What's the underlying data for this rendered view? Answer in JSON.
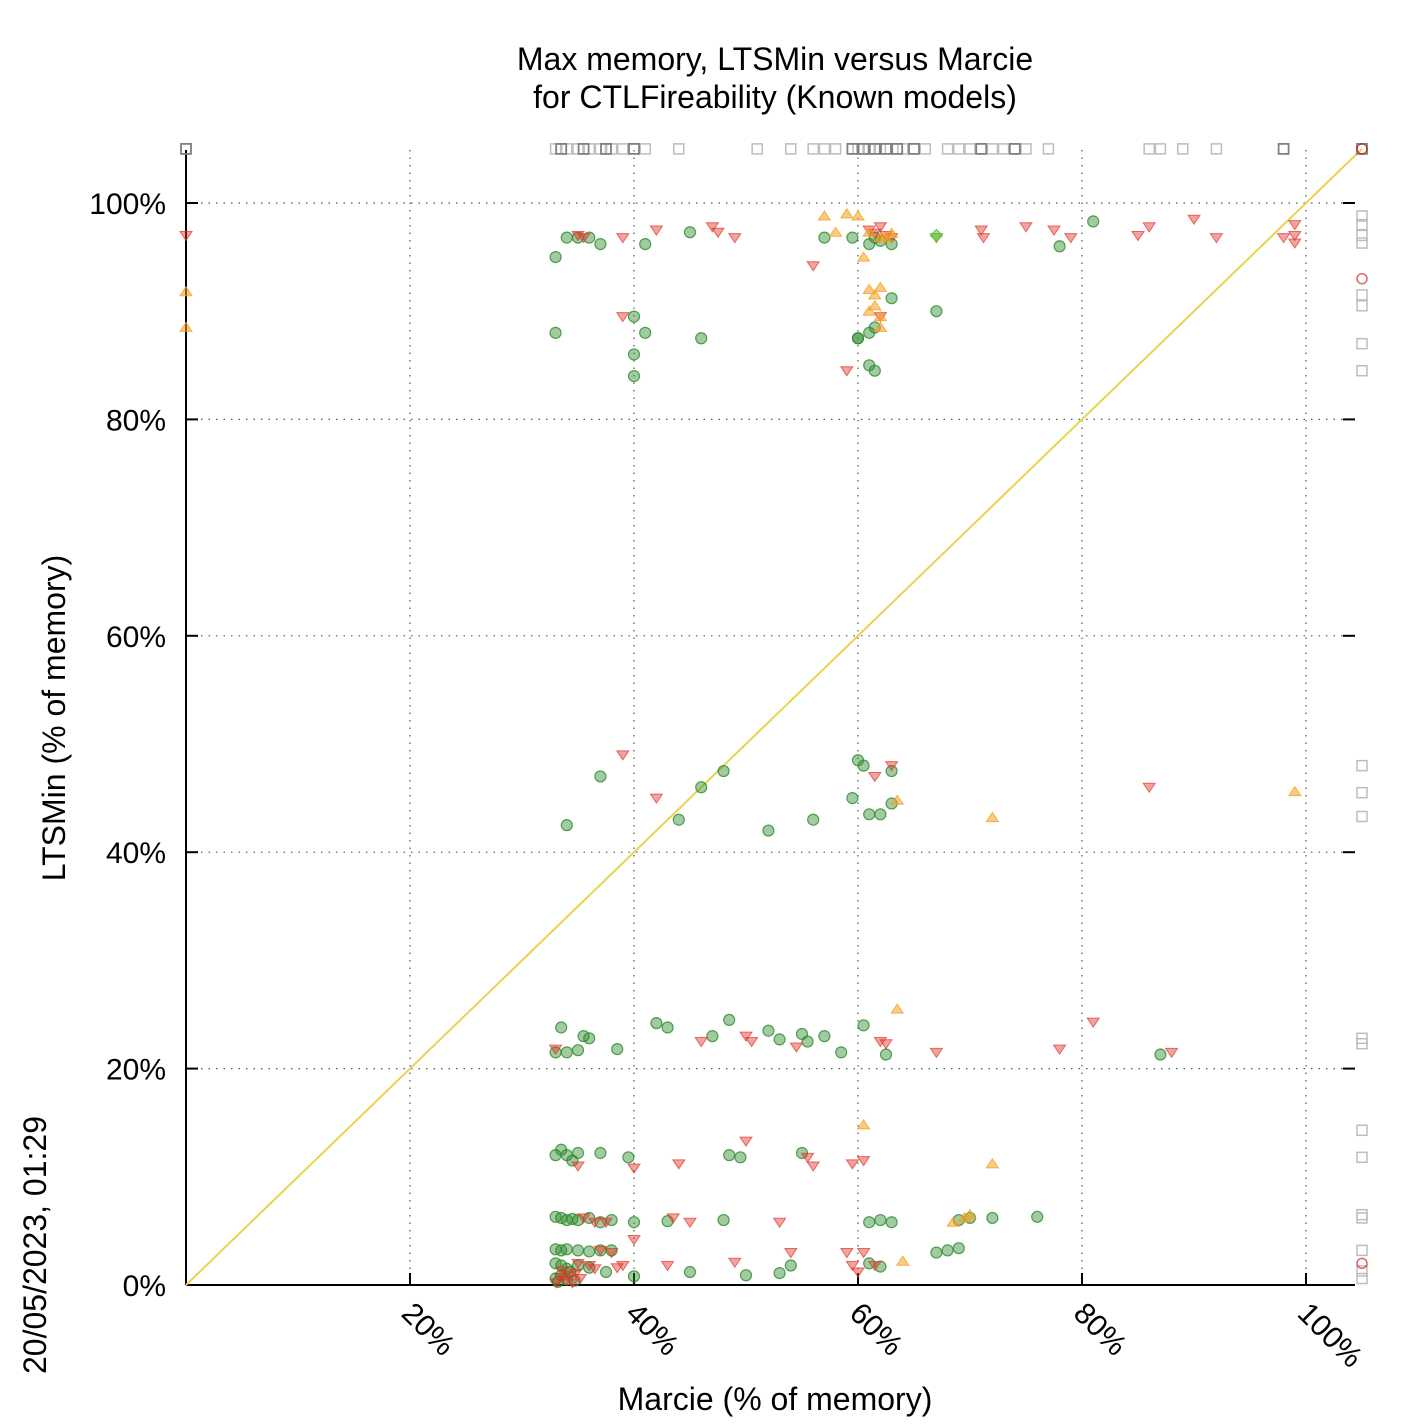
{
  "chart_data": {
    "type": "scatter",
    "title_line1": "Max memory, LTSMin versus Marcie",
    "title_line2": "for CTLFireability (Known models)",
    "xlabel": "Marcie (% of memory)",
    "ylabel": "LTSMin (% of memory)",
    "timestamp": "20/05/2023, 01:29",
    "xlim": [
      0,
      100
    ],
    "ylim": [
      0,
      100
    ],
    "x_tick_labels": [
      "20%",
      "40%",
      "60%",
      "80%",
      "100%"
    ],
    "x_ticks": [
      20,
      40,
      60,
      80,
      100
    ],
    "y_tick_labels": [
      "0%",
      "20%",
      "40%",
      "60%",
      "80%",
      "100%"
    ],
    "y_ticks": [
      0,
      20,
      40,
      60,
      80,
      100
    ],
    "grid": true,
    "diagonal": {
      "color": "#e8d44d",
      "from": [
        0,
        0
      ],
      "to": [
        100,
        100
      ]
    },
    "colors": {
      "circle": "#2e8b2e",
      "down_triangle": "#e0362a",
      "up_triangle": "#f5a020",
      "diamond": "#33dd33",
      "square_light": "#bdbdbd",
      "square_dark": "#808080",
      "fail_red": "#cc0000"
    },
    "series": [
      {
        "marker": "circle",
        "points": [
          [
            33,
            95
          ],
          [
            34,
            96.8
          ],
          [
            35,
            96.8
          ],
          [
            36,
            96.8
          ],
          [
            37,
            96.2
          ],
          [
            41,
            96.2
          ],
          [
            45,
            97.3
          ],
          [
            57,
            96.8
          ],
          [
            59.5,
            96.8
          ],
          [
            61,
            96.2
          ],
          [
            61.5,
            96.8
          ],
          [
            62,
            96.5
          ],
          [
            63,
            96.2
          ],
          [
            81,
            98.3
          ],
          [
            78,
            96
          ],
          [
            33,
            88
          ],
          [
            40,
            89.5
          ],
          [
            41,
            88
          ],
          [
            40,
            86
          ],
          [
            40,
            84
          ],
          [
            46,
            87.5
          ],
          [
            60,
            87.5
          ],
          [
            61,
            88
          ],
          [
            61.5,
            88.5
          ],
          [
            63,
            91.2
          ],
          [
            67,
            90
          ],
          [
            61,
            85
          ],
          [
            61.5,
            84.5
          ],
          [
            60,
            87.5
          ],
          [
            37,
            47
          ],
          [
            46,
            46
          ],
          [
            48,
            47.5
          ],
          [
            44,
            43
          ],
          [
            52,
            42
          ],
          [
            34,
            42.5
          ],
          [
            56,
            43
          ],
          [
            59.5,
            45
          ],
          [
            60,
            48.5
          ],
          [
            60.5,
            48
          ],
          [
            61,
            43.5
          ],
          [
            62,
            43.5
          ],
          [
            63,
            47.5
          ],
          [
            63,
            44.5
          ],
          [
            33.5,
            23.8
          ],
          [
            33,
            21.5
          ],
          [
            34,
            21.5
          ],
          [
            35,
            21.7
          ],
          [
            35.5,
            23
          ],
          [
            36,
            22.8
          ],
          [
            38.5,
            21.8
          ],
          [
            42,
            24.2
          ],
          [
            43,
            23.8
          ],
          [
            47,
            23
          ],
          [
            48.5,
            24.5
          ],
          [
            52,
            23.5
          ],
          [
            53,
            22.7
          ],
          [
            55,
            23.2
          ],
          [
            55.5,
            22.5
          ],
          [
            57,
            23
          ],
          [
            58.5,
            21.5
          ],
          [
            60.5,
            24
          ],
          [
            62.5,
            21.3
          ],
          [
            87,
            21.3
          ],
          [
            33.5,
            12.5
          ],
          [
            34,
            12
          ],
          [
            34.5,
            11.5
          ],
          [
            33,
            12
          ],
          [
            35,
            12.2
          ],
          [
            37,
            12.2
          ],
          [
            39.5,
            11.8
          ],
          [
            48.5,
            12
          ],
          [
            49.5,
            11.8
          ],
          [
            55,
            12.2
          ],
          [
            33,
            6.3
          ],
          [
            33.5,
            6.2
          ],
          [
            34,
            6
          ],
          [
            34.5,
            6.1
          ],
          [
            35,
            6
          ],
          [
            36,
            6.2
          ],
          [
            37,
            5.8
          ],
          [
            38,
            6
          ],
          [
            40,
            5.8
          ],
          [
            43,
            5.9
          ],
          [
            48,
            6
          ],
          [
            61,
            5.8
          ],
          [
            62,
            6
          ],
          [
            63,
            5.8
          ],
          [
            69,
            6
          ],
          [
            70,
            6.2
          ],
          [
            72,
            6.2
          ],
          [
            76,
            6.3
          ],
          [
            33,
            3.3
          ],
          [
            33.5,
            3.2
          ],
          [
            34,
            3.3
          ],
          [
            35,
            3.2
          ],
          [
            36,
            3.1
          ],
          [
            37,
            3.2
          ],
          [
            38,
            3.2
          ],
          [
            33,
            2
          ],
          [
            33.5,
            1.8
          ],
          [
            34,
            1.5
          ],
          [
            35,
            1.8
          ],
          [
            36,
            1.6
          ],
          [
            37.5,
            1.2
          ],
          [
            40,
            0.8
          ],
          [
            45,
            1.2
          ],
          [
            50,
            0.9
          ],
          [
            53,
            1.1
          ],
          [
            54,
            1.8
          ],
          [
            61,
            2
          ],
          [
            62,
            1.7
          ],
          [
            67,
            3
          ],
          [
            68,
            3.2
          ],
          [
            69,
            3.4
          ],
          [
            33,
            0.6
          ],
          [
            33.2,
            0.3
          ],
          [
            33.5,
            0.9
          ],
          [
            34,
            0.5
          ],
          [
            34.3,
            1.2
          ],
          [
            34.7,
            0.4
          ]
        ]
      },
      {
        "marker": "down_triangle",
        "points": [
          [
            0,
            97
          ],
          [
            35,
            97
          ],
          [
            35.5,
            96.8
          ],
          [
            39,
            96.8
          ],
          [
            42,
            97.5
          ],
          [
            47,
            97.8
          ],
          [
            47.5,
            97.3
          ],
          [
            49,
            96.8
          ],
          [
            56,
            94.2
          ],
          [
            61,
            97.5
          ],
          [
            61.5,
            97.2
          ],
          [
            62,
            97.8
          ],
          [
            62.5,
            97
          ],
          [
            63,
            96.8
          ],
          [
            67,
            96.8
          ],
          [
            71,
            97.5
          ],
          [
            71.2,
            96.8
          ],
          [
            75,
            97.8
          ],
          [
            77.5,
            97.5
          ],
          [
            79,
            96.8
          ],
          [
            85,
            97
          ],
          [
            86,
            97.8
          ],
          [
            90,
            98.5
          ],
          [
            92,
            96.8
          ],
          [
            98,
            96.8
          ],
          [
            99,
            98
          ],
          [
            99,
            97
          ],
          [
            99,
            96.3
          ],
          [
            39,
            89.5
          ],
          [
            59,
            84.5
          ],
          [
            62,
            89.5
          ],
          [
            39,
            49
          ],
          [
            42,
            45
          ],
          [
            61.5,
            47
          ],
          [
            63,
            48
          ],
          [
            86,
            46
          ],
          [
            33,
            21.8
          ],
          [
            46,
            22.5
          ],
          [
            50,
            23
          ],
          [
            50.5,
            22.5
          ],
          [
            54.5,
            22
          ],
          [
            62,
            22.5
          ],
          [
            62.5,
            22.3
          ],
          [
            67,
            21.5
          ],
          [
            78,
            21.8
          ],
          [
            81,
            24.3
          ],
          [
            88,
            21.5
          ],
          [
            35,
            11
          ],
          [
            40,
            10.8
          ],
          [
            44,
            11.2
          ],
          [
            50,
            13.3
          ],
          [
            55.5,
            11.8
          ],
          [
            56,
            11
          ],
          [
            59.5,
            11.2
          ],
          [
            60.5,
            11.5
          ],
          [
            35.5,
            6.2
          ],
          [
            36.5,
            5.8
          ],
          [
            37.5,
            5.8
          ],
          [
            43.5,
            6.2
          ],
          [
            45,
            5.8
          ],
          [
            53,
            5.8
          ],
          [
            40,
            4.2
          ],
          [
            37,
            3.2
          ],
          [
            38,
            3
          ],
          [
            35,
            2
          ],
          [
            36,
            1.8
          ],
          [
            36.5,
            1.5
          ],
          [
            38.5,
            1.6
          ],
          [
            39,
            1.8
          ],
          [
            43,
            1.8
          ],
          [
            49,
            2.1
          ],
          [
            54,
            3
          ],
          [
            59,
            3
          ],
          [
            59.5,
            1.8
          ],
          [
            60,
            1.2
          ],
          [
            60.5,
            3
          ],
          [
            61.5,
            1.8
          ],
          [
            33.1,
            0.2
          ],
          [
            33.4,
            0.7
          ],
          [
            33.6,
            1.3
          ],
          [
            33.9,
            0.4
          ],
          [
            34.2,
            0.9
          ],
          [
            34.5,
            0.2
          ],
          [
            34.8,
            1.1
          ],
          [
            35.2,
            0.6
          ]
        ]
      },
      {
        "marker": "up_triangle",
        "points": [
          [
            0,
            91.8
          ],
          [
            0,
            88.5
          ],
          [
            57,
            98.8
          ],
          [
            59,
            99
          ],
          [
            60,
            98.8
          ],
          [
            58,
            97.3
          ],
          [
            61,
            97.3
          ],
          [
            62,
            96.8
          ],
          [
            62.5,
            96.8
          ],
          [
            63,
            97.2
          ],
          [
            60.5,
            95
          ],
          [
            61,
            92
          ],
          [
            61.5,
            91.5
          ],
          [
            62,
            92.2
          ],
          [
            61,
            90
          ],
          [
            61.5,
            90.5
          ],
          [
            62,
            89.5
          ],
          [
            62,
            88.5
          ],
          [
            63.5,
            44.8
          ],
          [
            72,
            43.2
          ],
          [
            99,
            45.6
          ],
          [
            63.5,
            25.5
          ],
          [
            60.5,
            14.8
          ],
          [
            72,
            11.2
          ],
          [
            68.5,
            5.8
          ],
          [
            69.5,
            6.2
          ],
          [
            70,
            6.5
          ],
          [
            64,
            2.2
          ]
        ]
      },
      {
        "marker": "diamond",
        "points": [
          [
            67,
            97
          ]
        ]
      },
      {
        "marker": "square_light",
        "points": [
          [
            33,
            105
          ],
          [
            34,
            105
          ],
          [
            35,
            105
          ],
          [
            36,
            105
          ],
          [
            37,
            105
          ],
          [
            38,
            105
          ],
          [
            39,
            105
          ],
          [
            41,
            105
          ],
          [
            44,
            105
          ],
          [
            51,
            105
          ],
          [
            54,
            105
          ],
          [
            56,
            105
          ],
          [
            57,
            105
          ],
          [
            58,
            105
          ],
          [
            60,
            105
          ],
          [
            61,
            105
          ],
          [
            62,
            105
          ],
          [
            64,
            105
          ],
          [
            66,
            105
          ],
          [
            68,
            105
          ],
          [
            69,
            105
          ],
          [
            70,
            105
          ],
          [
            72,
            105
          ],
          [
            73,
            105
          ],
          [
            75,
            105
          ],
          [
            77,
            105
          ],
          [
            86,
            105
          ],
          [
            87,
            105
          ],
          [
            89,
            105
          ],
          [
            92,
            105
          ],
          [
            105,
            98.8
          ],
          [
            105,
            98
          ],
          [
            105,
            97
          ],
          [
            105,
            96.3
          ],
          [
            105,
            91.5
          ],
          [
            105,
            90.5
          ],
          [
            105,
            87
          ],
          [
            105,
            84.5
          ],
          [
            105,
            48
          ],
          [
            105,
            45.5
          ],
          [
            105,
            43.3
          ],
          [
            105,
            22.8
          ],
          [
            105,
            22.3
          ],
          [
            105,
            14.3
          ],
          [
            105,
            11.8
          ],
          [
            105,
            6.5
          ],
          [
            105,
            6.2
          ],
          [
            105,
            3.2
          ],
          [
            105,
            1.3
          ],
          [
            105,
            0.6
          ]
        ]
      },
      {
        "marker": "square_dark",
        "points": [
          [
            0,
            105
          ],
          [
            33.5,
            105
          ],
          [
            35.5,
            105
          ],
          [
            37.5,
            105
          ],
          [
            40,
            105
          ],
          [
            59.5,
            105
          ],
          [
            60.5,
            105
          ],
          [
            61.5,
            105
          ],
          [
            62.5,
            105
          ],
          [
            63.5,
            105
          ],
          [
            65,
            105
          ],
          [
            71,
            105
          ],
          [
            74,
            105
          ],
          [
            98,
            105
          ],
          [
            105,
            105
          ]
        ]
      },
      {
        "marker": "circle_open_red",
        "points": [
          [
            105,
            105
          ],
          [
            105,
            93
          ],
          [
            105,
            2
          ]
        ]
      }
    ]
  }
}
